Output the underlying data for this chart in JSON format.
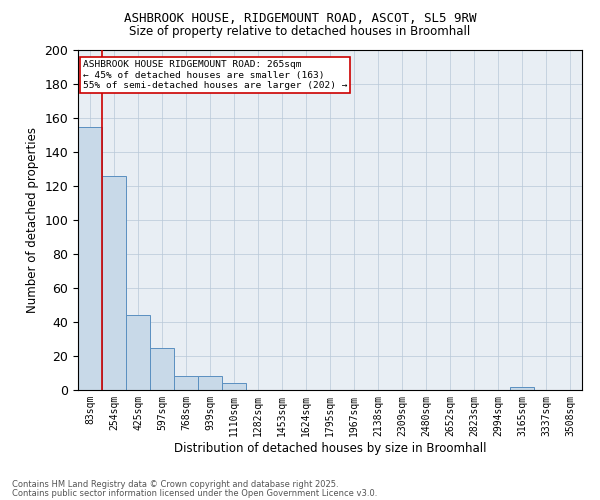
{
  "title1": "ASHBROOK HOUSE, RIDGEMOUNT ROAD, ASCOT, SL5 9RW",
  "title2": "Size of property relative to detached houses in Broomhall",
  "xlabel": "Distribution of detached houses by size in Broomhall",
  "ylabel": "Number of detached properties",
  "bin_labels": [
    "83sqm",
    "254sqm",
    "425sqm",
    "597sqm",
    "768sqm",
    "939sqm",
    "1110sqm",
    "1282sqm",
    "1453sqm",
    "1624sqm",
    "1795sqm",
    "1967sqm",
    "2138sqm",
    "2309sqm",
    "2480sqm",
    "2652sqm",
    "2823sqm",
    "2994sqm",
    "3165sqm",
    "3337sqm",
    "3508sqm"
  ],
  "bin_values": [
    155,
    126,
    44,
    25,
    8,
    8,
    4,
    0,
    0,
    0,
    0,
    0,
    0,
    0,
    0,
    0,
    0,
    0,
    2,
    0,
    0
  ],
  "bar_color": "#c8d9e8",
  "bar_edge_color": "#5a8fc0",
  "vline_x": 1,
  "vline_color": "#cc0000",
  "annotation_text": "ASHBROOK HOUSE RIDGEMOUNT ROAD: 265sqm\n← 45% of detached houses are smaller (163)\n55% of semi-detached houses are larger (202) →",
  "annotation_box_color": "#ffffff",
  "annotation_box_edge": "#cc0000",
  "footer1": "Contains HM Land Registry data © Crown copyright and database right 2025.",
  "footer2": "Contains public sector information licensed under the Open Government Licence v3.0.",
  "ylim": [
    0,
    200
  ],
  "yticks": [
    0,
    20,
    40,
    60,
    80,
    100,
    120,
    140,
    160,
    180,
    200
  ],
  "background_color": "#e8eef4"
}
